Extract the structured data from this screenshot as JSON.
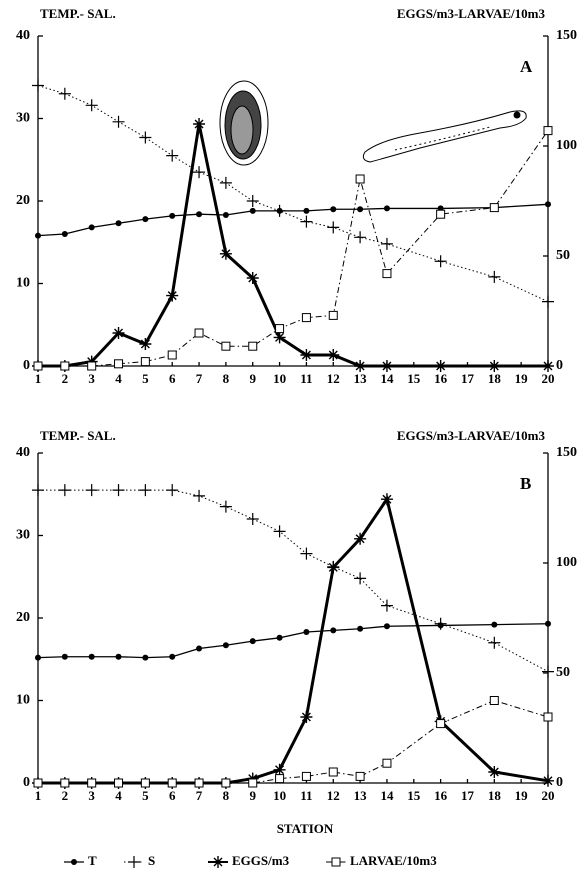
{
  "chart_data": [
    {
      "type": "line",
      "panel": "A",
      "y_label": "TEMP.- SAL.",
      "y2_label": "EGGS/m3-LARVAE/10m3",
      "x": [
        1,
        2,
        3,
        4,
        5,
        6,
        7,
        8,
        9,
        10,
        11,
        12,
        13,
        14,
        16,
        18,
        20
      ],
      "xlim": [
        1,
        20
      ],
      "xticks": [
        1,
        2,
        3,
        4,
        5,
        6,
        7,
        8,
        9,
        10,
        11,
        12,
        13,
        14,
        15,
        16,
        17,
        18,
        19,
        20
      ],
      "ylim": [
        0,
        40
      ],
      "yticks": [
        0,
        10,
        20,
        30,
        40
      ],
      "y2lim": [
        0,
        150
      ],
      "y2ticks": [
        0,
        50,
        100,
        150
      ],
      "series": [
        {
          "color": "#000",
          "marker": "dot",
          "style": "solid",
          "values": [
            15.8,
            16,
            16.8,
            17.3,
            17.8,
            18.2,
            18.4,
            18.3,
            18.8,
            18.8,
            18.8,
            19,
            19,
            19.1,
            19.1,
            19.2,
            19.6
          ]
        },
        {
          "color": "#000",
          "marker": "plus",
          "style": "dotted",
          "values": [
            34,
            33,
            31.6,
            29.6,
            27.7,
            25.5,
            23.5,
            22.2,
            20,
            18.8,
            17.5,
            16.8,
            15.6,
            14.8,
            12.7,
            10.8,
            7.8
          ]
        },
        {
          "color": "#000",
          "marker": "star",
          "style": "thick",
          "axis": "y2",
          "values": [
            0,
            0,
            2,
            15,
            10,
            32,
            110,
            51,
            40,
            13,
            5,
            5,
            0,
            0,
            0,
            0,
            0
          ]
        },
        {
          "color": "#000",
          "marker": "square",
          "style": "dashdot",
          "axis": "y2",
          "values": [
            0,
            0,
            0,
            1,
            2,
            5,
            15,
            9,
            9,
            17,
            22,
            23,
            85,
            42,
            69,
            72,
            107
          ]
        }
      ]
    },
    {
      "type": "line",
      "panel": "B",
      "y_label": "TEMP.- SAL.",
      "y2_label": "EGGS/m3-LARVAE/10m3",
      "x_label": "STATION",
      "x": [
        1,
        2,
        3,
        4,
        5,
        6,
        7,
        8,
        9,
        10,
        11,
        12,
        13,
        14,
        16,
        18,
        20
      ],
      "xlim": [
        1,
        20
      ],
      "xticks": [
        1,
        2,
        3,
        4,
        5,
        6,
        7,
        8,
        9,
        10,
        11,
        12,
        13,
        14,
        15,
        16,
        17,
        18,
        19,
        20
      ],
      "ylim": [
        0,
        40
      ],
      "yticks": [
        0,
        10,
        20,
        30,
        40
      ],
      "y2lim": [
        0,
        150
      ],
      "y2ticks": [
        0,
        50,
        100,
        150
      ],
      "series": [
        {
          "name": "T",
          "color": "#000",
          "marker": "dot",
          "style": "solid",
          "values": [
            15.2,
            15.3,
            15.3,
            15.3,
            15.2,
            15.3,
            16.3,
            16.7,
            17.2,
            17.6,
            18.3,
            18.5,
            18.7,
            19,
            19.1,
            19.2,
            19.3
          ]
        },
        {
          "name": "S",
          "color": "#000",
          "marker": "plus",
          "style": "dotted",
          "values": [
            35.5,
            35.5,
            35.5,
            35.5,
            35.5,
            35.5,
            34.8,
            33.5,
            32,
            30.5,
            27.8,
            26.2,
            24.8,
            21.5,
            19.3,
            17,
            13.5
          ]
        },
        {
          "name": "EGGS/m3",
          "color": "#000",
          "marker": "star",
          "style": "thick",
          "axis": "y2",
          "values": [
            0,
            0,
            0,
            0,
            0,
            0,
            0,
            0,
            2,
            6,
            30,
            98,
            111,
            129,
            28,
            5,
            1
          ]
        },
        {
          "name": "LARVAE/10m3",
          "color": "#000",
          "marker": "square",
          "style": "dashdot",
          "axis": "y2",
          "values": [
            0,
            0,
            0,
            0,
            0,
            0,
            0,
            0,
            0,
            2,
            3,
            5,
            3,
            9,
            27,
            37.5,
            30
          ]
        }
      ]
    }
  ]
}
